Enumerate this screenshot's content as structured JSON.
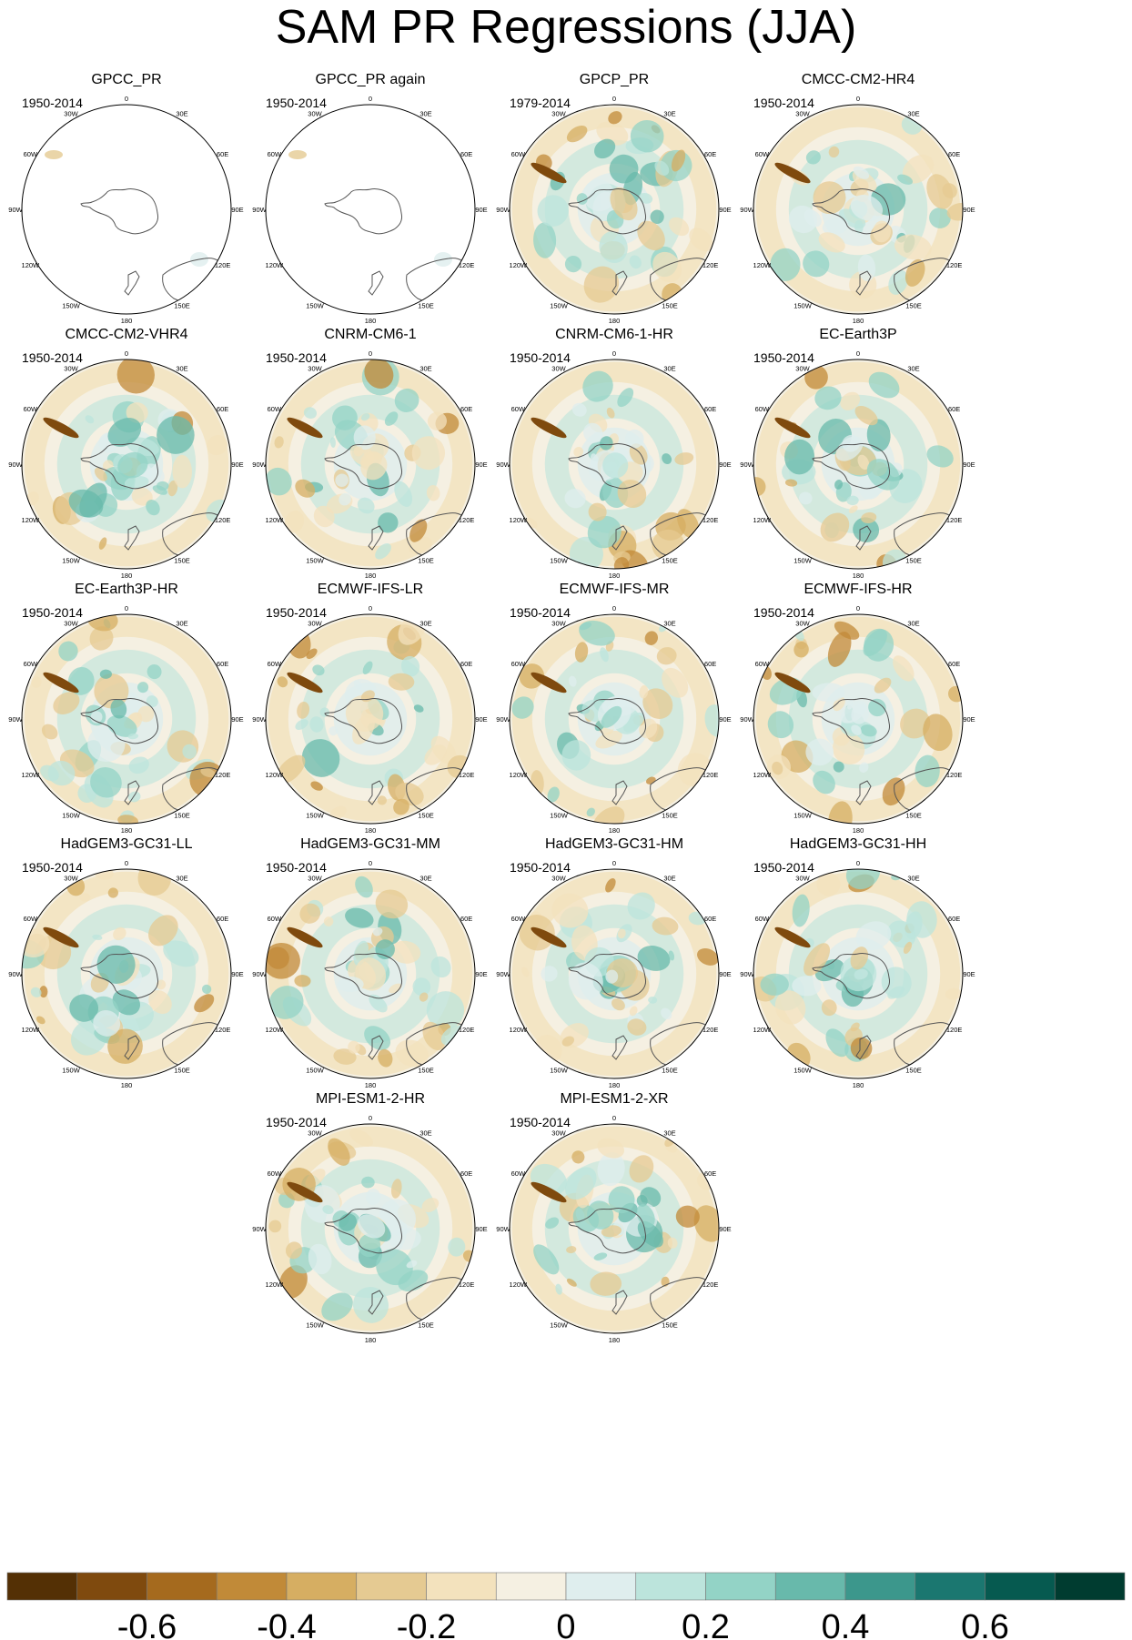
{
  "figure": {
    "title": "SAM PR Regressions (JJA)"
  },
  "lon_labels": [
    "0",
    "30E",
    "60E",
    "90E",
    "120E",
    "150E",
    "180",
    "150W",
    "120W",
    "90W",
    "60W",
    "30W"
  ],
  "panels": [
    {
      "name": "GPCC_PR",
      "period": "1950-2014",
      "ocean_fill": false
    },
    {
      "name": "GPCC_PR again",
      "period": "1950-2014",
      "ocean_fill": false
    },
    {
      "name": "GPCP_PR",
      "period": "1979-2014",
      "ocean_fill": true
    },
    {
      "name": "CMCC-CM2-HR4",
      "period": "1950-2014",
      "ocean_fill": true
    },
    {
      "name": "CMCC-CM2-VHR4",
      "period": "1950-2014",
      "ocean_fill": true
    },
    {
      "name": "CNRM-CM6-1",
      "period": "1950-2014",
      "ocean_fill": true
    },
    {
      "name": "CNRM-CM6-1-HR",
      "period": "1950-2014",
      "ocean_fill": true
    },
    {
      "name": "EC-Earth3P",
      "period": "1950-2014",
      "ocean_fill": true
    },
    {
      "name": "EC-Earth3P-HR",
      "period": "1950-2014",
      "ocean_fill": true
    },
    {
      "name": "ECMWF-IFS-LR",
      "period": "1950-2014",
      "ocean_fill": true
    },
    {
      "name": "ECMWF-IFS-MR",
      "period": "1950-2014",
      "ocean_fill": true
    },
    {
      "name": "ECMWF-IFS-HR",
      "period": "1950-2014",
      "ocean_fill": true
    },
    {
      "name": "HadGEM3-GC31-LL",
      "period": "1950-2014",
      "ocean_fill": true
    },
    {
      "name": "HadGEM3-GC31-MM",
      "period": "1950-2014",
      "ocean_fill": true
    },
    {
      "name": "HadGEM3-GC31-HM",
      "period": "1950-2014",
      "ocean_fill": true
    },
    {
      "name": "HadGEM3-GC31-HH",
      "period": "1950-2014",
      "ocean_fill": true
    },
    {
      "name": "MPI-ESM1-2-HR",
      "period": "1950-2014",
      "ocean_fill": true
    },
    {
      "name": "MPI-ESM1-2-XR",
      "period": "1950-2014",
      "ocean_fill": true
    }
  ],
  "colorbar": {
    "colors": [
      "#543005",
      "#7f4a0e",
      "#a56a1e",
      "#c18a38",
      "#d6ae62",
      "#e5ca92",
      "#f3e2bd",
      "#f5f0e2",
      "#dfeeee",
      "#bce4dc",
      "#93d3c6",
      "#68b9ab",
      "#3c978c",
      "#1b7770",
      "#065a50",
      "#003c30"
    ],
    "tick_labels": [
      "-0.6",
      "-0.4",
      "-0.2",
      "0",
      "0.2",
      "0.4",
      "0.6"
    ]
  }
}
